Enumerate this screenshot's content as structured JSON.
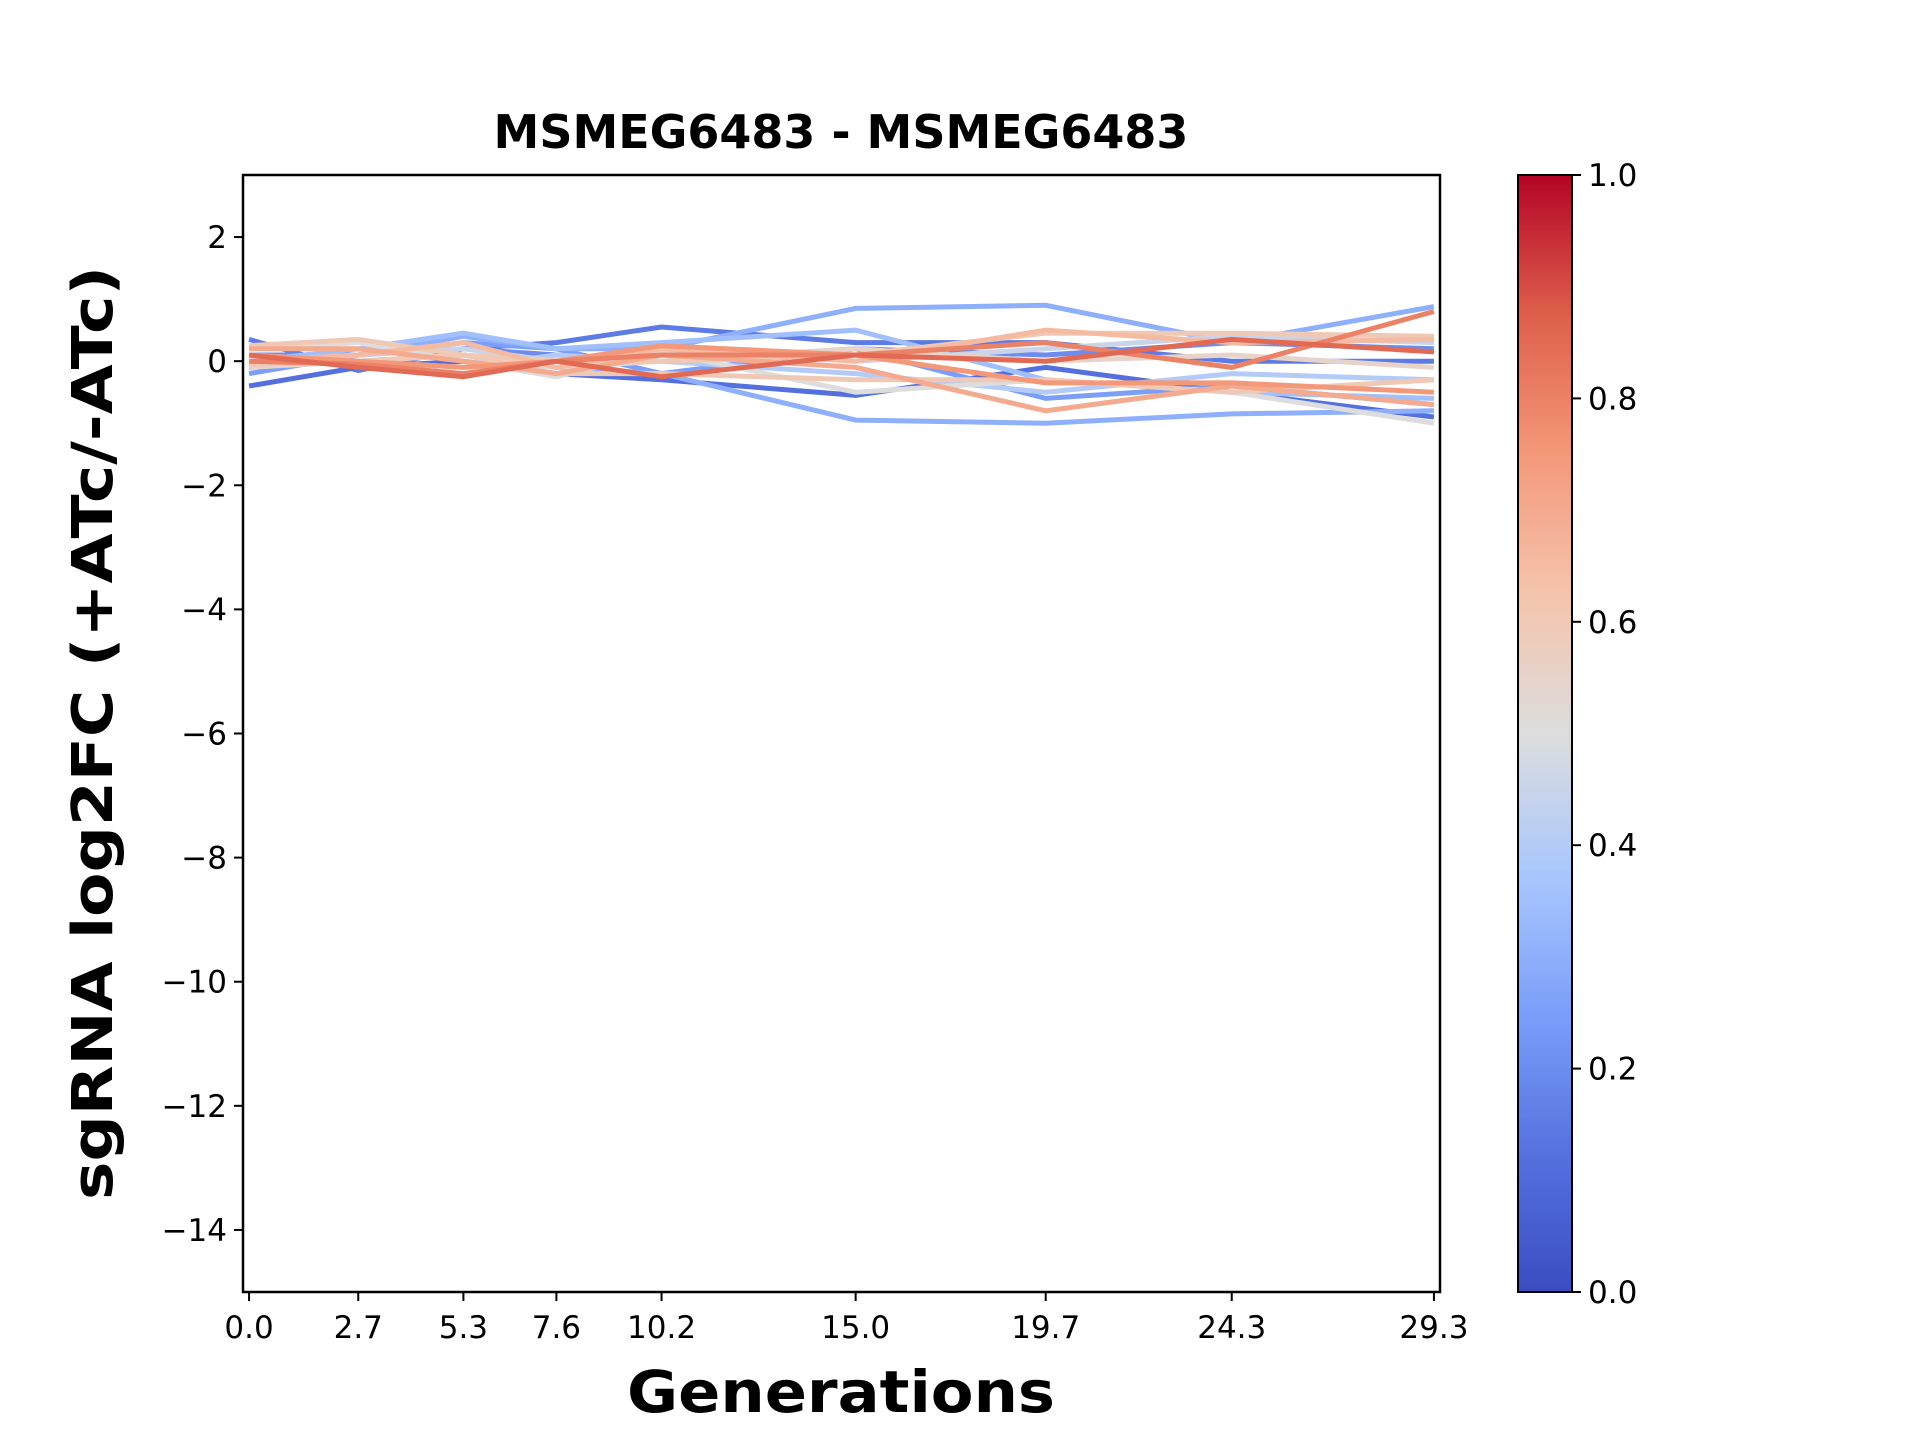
{
  "chart_data": {
    "type": "line",
    "title": "MSMEG6483 - MSMEG6483",
    "xlabel": "Generations",
    "ylabel": "sgRNA log2FC (+ATc/-ATc)",
    "x": [
      0.0,
      2.7,
      5.3,
      7.6,
      10.2,
      15.0,
      19.7,
      24.3,
      29.3
    ],
    "xtick_labels": [
      "0.0",
      "2.7",
      "5.3",
      "7.6",
      "10.2",
      "15.0",
      "19.7",
      "24.3",
      "29.3"
    ],
    "xlim": [
      -0.15,
      29.45
    ],
    "ylim": [
      -15,
      3
    ],
    "yticks": [
      2,
      0,
      -2,
      -4,
      -6,
      -8,
      -10,
      -12,
      -14
    ],
    "ytick_labels": [
      "2",
      "0",
      "−2",
      "−4",
      "−6",
      "−8",
      "−10",
      "−12",
      "−14"
    ],
    "grid": false,
    "colormap": "coolwarm",
    "colorbar": {
      "range": [
        0.0,
        1.0
      ],
      "tick_labels": [
        "0.0",
        "0.2",
        "0.4",
        "0.6",
        "0.8",
        "1.0"
      ],
      "ticks": [
        0.0,
        0.2,
        0.4,
        0.6,
        0.8,
        1.0
      ]
    },
    "series": [
      {
        "color_value": 0.15,
        "values": [
          0.35,
          -0.15,
          0.2,
          0.3,
          0.55,
          0.3,
          0.3,
          0.0,
          0.0
        ]
      },
      {
        "color_value": 0.12,
        "values": [
          -0.4,
          -0.1,
          0.0,
          -0.2,
          -0.3,
          -0.55,
          -0.1,
          -0.5,
          -0.9
        ]
      },
      {
        "color_value": 0.2,
        "values": [
          0.1,
          0.1,
          0.2,
          0.1,
          0.0,
          0.2,
          0.1,
          0.3,
          0.2
        ]
      },
      {
        "color_value": 0.25,
        "values": [
          -0.2,
          0.1,
          0.3,
          0.2,
          -0.2,
          0.2,
          -0.6,
          -0.4,
          -0.7
        ]
      },
      {
        "color_value": 0.3,
        "values": [
          -0.1,
          0.1,
          0.4,
          0.2,
          0.2,
          0.85,
          0.9,
          0.3,
          0.88
        ]
      },
      {
        "color_value": 0.3,
        "values": [
          -0.1,
          0.0,
          0.1,
          -0.1,
          -0.2,
          -0.95,
          -1.0,
          -0.85,
          -0.8
        ]
      },
      {
        "color_value": 0.35,
        "values": [
          0.0,
          0.2,
          0.45,
          0.2,
          0.3,
          0.5,
          -0.3,
          -0.5,
          -0.6
        ]
      },
      {
        "color_value": 0.4,
        "values": [
          0.1,
          0.0,
          -0.1,
          0.1,
          0.0,
          -0.2,
          -0.5,
          -0.2,
          -0.3
        ]
      },
      {
        "color_value": 0.45,
        "values": [
          0.0,
          0.1,
          0.2,
          0.0,
          0.2,
          0.0,
          0.2,
          0.4,
          0.3
        ]
      },
      {
        "color_value": 0.5,
        "values": [
          0.2,
          0.3,
          0.0,
          -0.25,
          0.15,
          -0.5,
          -0.3,
          -0.5,
          -1.0
        ]
      },
      {
        "color_value": 0.55,
        "values": [
          -0.1,
          0.0,
          0.1,
          -0.1,
          0.0,
          0.2,
          0.0,
          0.1,
          -0.1
        ]
      },
      {
        "color_value": 0.6,
        "values": [
          0.25,
          0.35,
          0.1,
          0.0,
          0.0,
          0.1,
          0.45,
          0.45,
          0.4
        ]
      },
      {
        "color_value": 0.6,
        "values": [
          -0.05,
          0.0,
          0.1,
          -0.2,
          -0.2,
          -0.3,
          -0.3,
          -0.5,
          -0.3
        ]
      },
      {
        "color_value": 0.65,
        "values": [
          0.0,
          0.1,
          0.3,
          -0.1,
          0.2,
          0.0,
          0.5,
          0.3,
          0.35
        ]
      },
      {
        "color_value": 0.7,
        "values": [
          0.2,
          0.2,
          0.0,
          -0.2,
          0.1,
          -0.1,
          -0.8,
          -0.4,
          -0.7
        ]
      },
      {
        "color_value": 0.75,
        "values": [
          0.1,
          0.0,
          -0.1,
          0.0,
          0.25,
          0.1,
          -0.35,
          -0.35,
          -0.5
        ]
      },
      {
        "color_value": 0.8,
        "values": [
          0.0,
          -0.05,
          -0.2,
          0.0,
          0.1,
          0.1,
          0.3,
          -0.1,
          0.8
        ]
      },
      {
        "color_value": 0.85,
        "values": [
          0.1,
          -0.1,
          -0.25,
          0.0,
          -0.25,
          0.1,
          0.0,
          0.35,
          0.15
        ]
      }
    ]
  }
}
